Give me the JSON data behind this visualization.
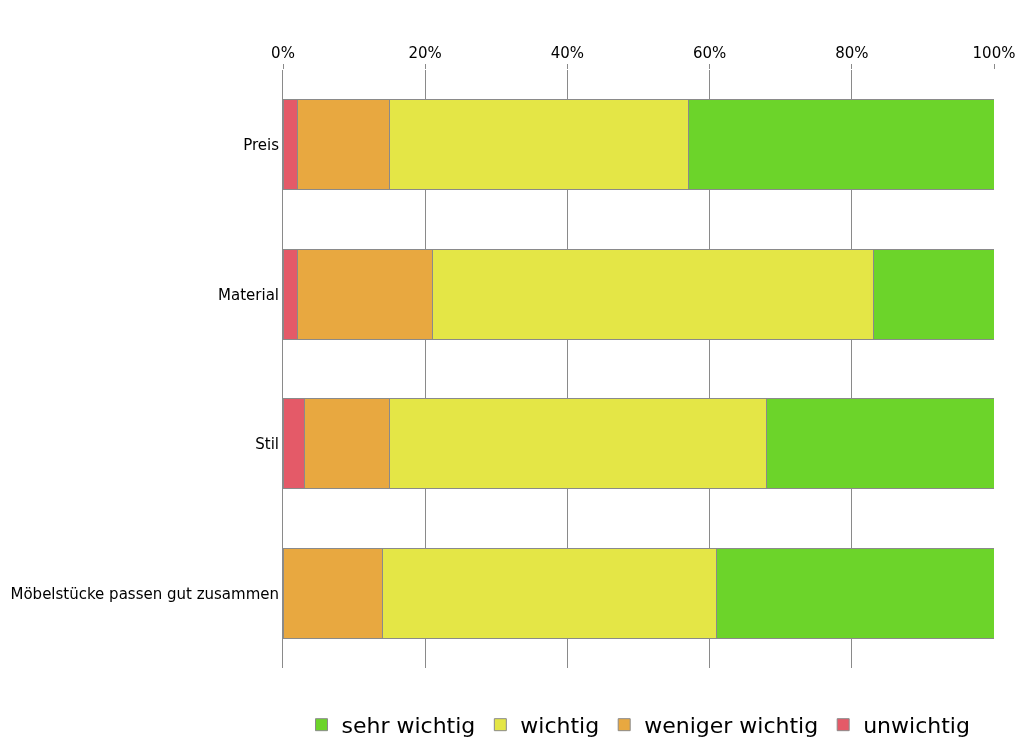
{
  "chart_data": {
    "type": "bar",
    "orientation": "horizontal",
    "stacked": true,
    "categories": [
      "Preis",
      "Material",
      "Stil",
      "Möbelstücke passen gut zusammen"
    ],
    "series": [
      {
        "name": "unwichtig",
        "color": "#e45a68",
        "values": [
          2,
          2,
          3,
          0
        ]
      },
      {
        "name": "weniger wichtig",
        "color": "#e8a840",
        "values": [
          13,
          19,
          12,
          14
        ]
      },
      {
        "name": "wichtig",
        "color": "#e4e646",
        "values": [
          42,
          62,
          53,
          47
        ]
      },
      {
        "name": "sehr wichtig",
        "color": "#6cd42a",
        "values": [
          43,
          17,
          32,
          39
        ]
      }
    ],
    "xlim": [
      0,
      100
    ],
    "xticks": [
      {
        "value": 0,
        "label": "0%"
      },
      {
        "value": 20,
        "label": "20%"
      },
      {
        "value": 40,
        "label": "40%"
      },
      {
        "value": 60,
        "label": "60%"
      },
      {
        "value": 80,
        "label": "80%"
      },
      {
        "value": 100,
        "label": "100%"
      }
    ],
    "grid": "x",
    "legend": "bottom"
  }
}
